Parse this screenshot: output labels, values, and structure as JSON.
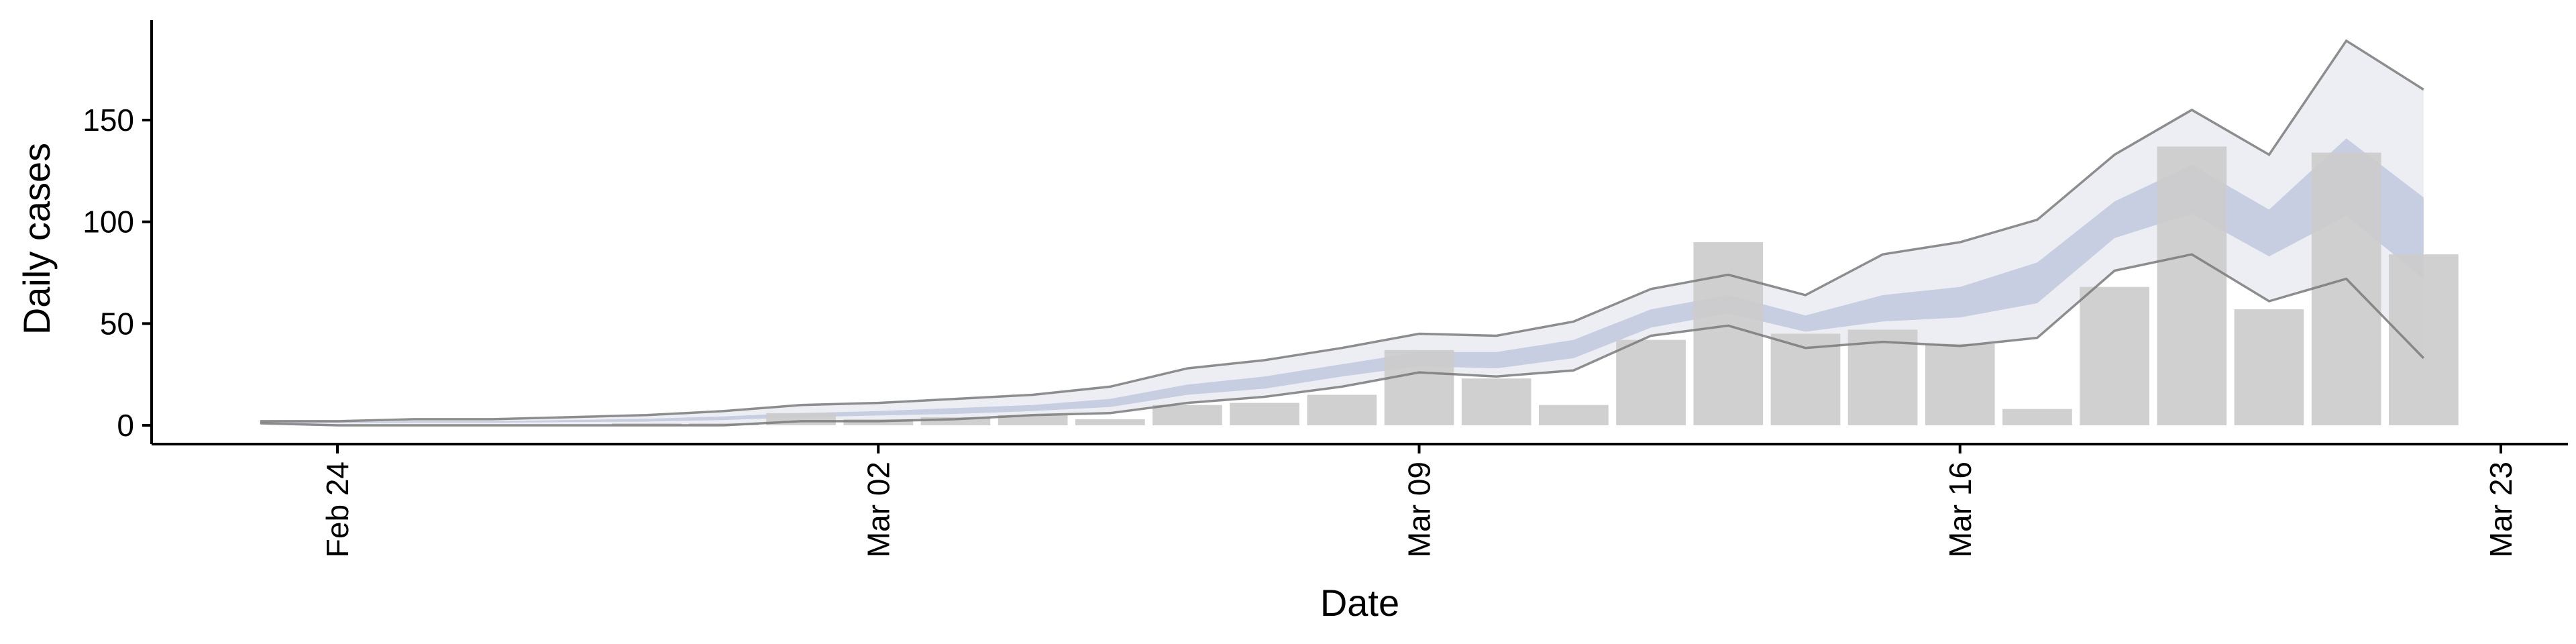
{
  "chart_data": {
    "type": "bar",
    "xlabel": "Date",
    "ylabel": "Daily cases",
    "x_axis": {
      "type": "date",
      "range": [
        "2020-02-20",
        "2020-03-23"
      ],
      "ticks": [
        {
          "date": "2020-02-24",
          "label": "Feb 24"
        },
        {
          "date": "2020-03-02",
          "label": "Mar 02"
        },
        {
          "date": "2020-03-09",
          "label": "Mar 09"
        },
        {
          "date": "2020-03-16",
          "label": "Mar 16"
        },
        {
          "date": "2020-03-23",
          "label": "Mar 23"
        }
      ]
    },
    "y_axis": {
      "range": [
        -8,
        197
      ],
      "ticks": [
        0,
        50,
        100,
        150
      ]
    },
    "grid": false,
    "legend": "none",
    "colors": {
      "bars": "#cccccc",
      "band_outer": "#dde0ea",
      "band_inner": "#b9c1d8",
      "bound_lines": "#7a7a7a"
    },
    "bars": {
      "dates": [
        "2020-02-28",
        "2020-02-29",
        "2020-03-01",
        "2020-03-02",
        "2020-03-03",
        "2020-03-04",
        "2020-03-05",
        "2020-03-06",
        "2020-03-07",
        "2020-03-08",
        "2020-03-09",
        "2020-03-10",
        "2020-03-11",
        "2020-03-12",
        "2020-03-13",
        "2020-03-14",
        "2020-03-15",
        "2020-03-16",
        "2020-03-17",
        "2020-03-18",
        "2020-03-19",
        "2020-03-20",
        "2020-03-21",
        "2020-03-22"
      ],
      "values": [
        1,
        1,
        6,
        3,
        4,
        5,
        3,
        10,
        11,
        15,
        37,
        23,
        10,
        42,
        90,
        45,
        47,
        40,
        8,
        68,
        137,
        57,
        134,
        84
      ]
    },
    "estimate": {
      "dates": [
        "2020-02-23",
        "2020-02-24",
        "2020-02-25",
        "2020-02-26",
        "2020-02-27",
        "2020-02-28",
        "2020-02-29",
        "2020-03-01",
        "2020-03-02",
        "2020-03-03",
        "2020-03-04",
        "2020-03-05",
        "2020-03-06",
        "2020-03-07",
        "2020-03-08",
        "2020-03-09",
        "2020-03-10",
        "2020-03-11",
        "2020-03-12",
        "2020-03-13",
        "2020-03-14",
        "2020-03-15",
        "2020-03-16",
        "2020-03-17",
        "2020-03-18",
        "2020-03-19",
        "2020-03-20",
        "2020-03-21",
        "2020-03-22"
      ],
      "upper_90": [
        2,
        2,
        3,
        3,
        4,
        5,
        7,
        10,
        11,
        13,
        15,
        19,
        28,
        32,
        38,
        45,
        44,
        51,
        67,
        74,
        64,
        84,
        90,
        101,
        133,
        155,
        133,
        189,
        165
      ],
      "upper_50": [
        1.6,
        1.6,
        2,
        2,
        2.6,
        3.2,
        4.4,
        6,
        7,
        8.5,
        10,
        13,
        20,
        24,
        30,
        36,
        36,
        42,
        57,
        64,
        54,
        64,
        68,
        80,
        110,
        128,
        106,
        141,
        112
      ],
      "lower_50": [
        1.2,
        1.2,
        1.3,
        1.3,
        1.6,
        1.8,
        2.6,
        4,
        4.8,
        5.6,
        7,
        9,
        15,
        18,
        24,
        29,
        28,
        33,
        48,
        55,
        46,
        51,
        53,
        60,
        92,
        104,
        83,
        103,
        72
      ],
      "lower_90": [
        1,
        0,
        0,
        0,
        0,
        0,
        0,
        2,
        2,
        3,
        5,
        6,
        11,
        14,
        19,
        26,
        24,
        27,
        44,
        49,
        38,
        41,
        39,
        43,
        76,
        84,
        61,
        72,
        33
      ]
    }
  }
}
